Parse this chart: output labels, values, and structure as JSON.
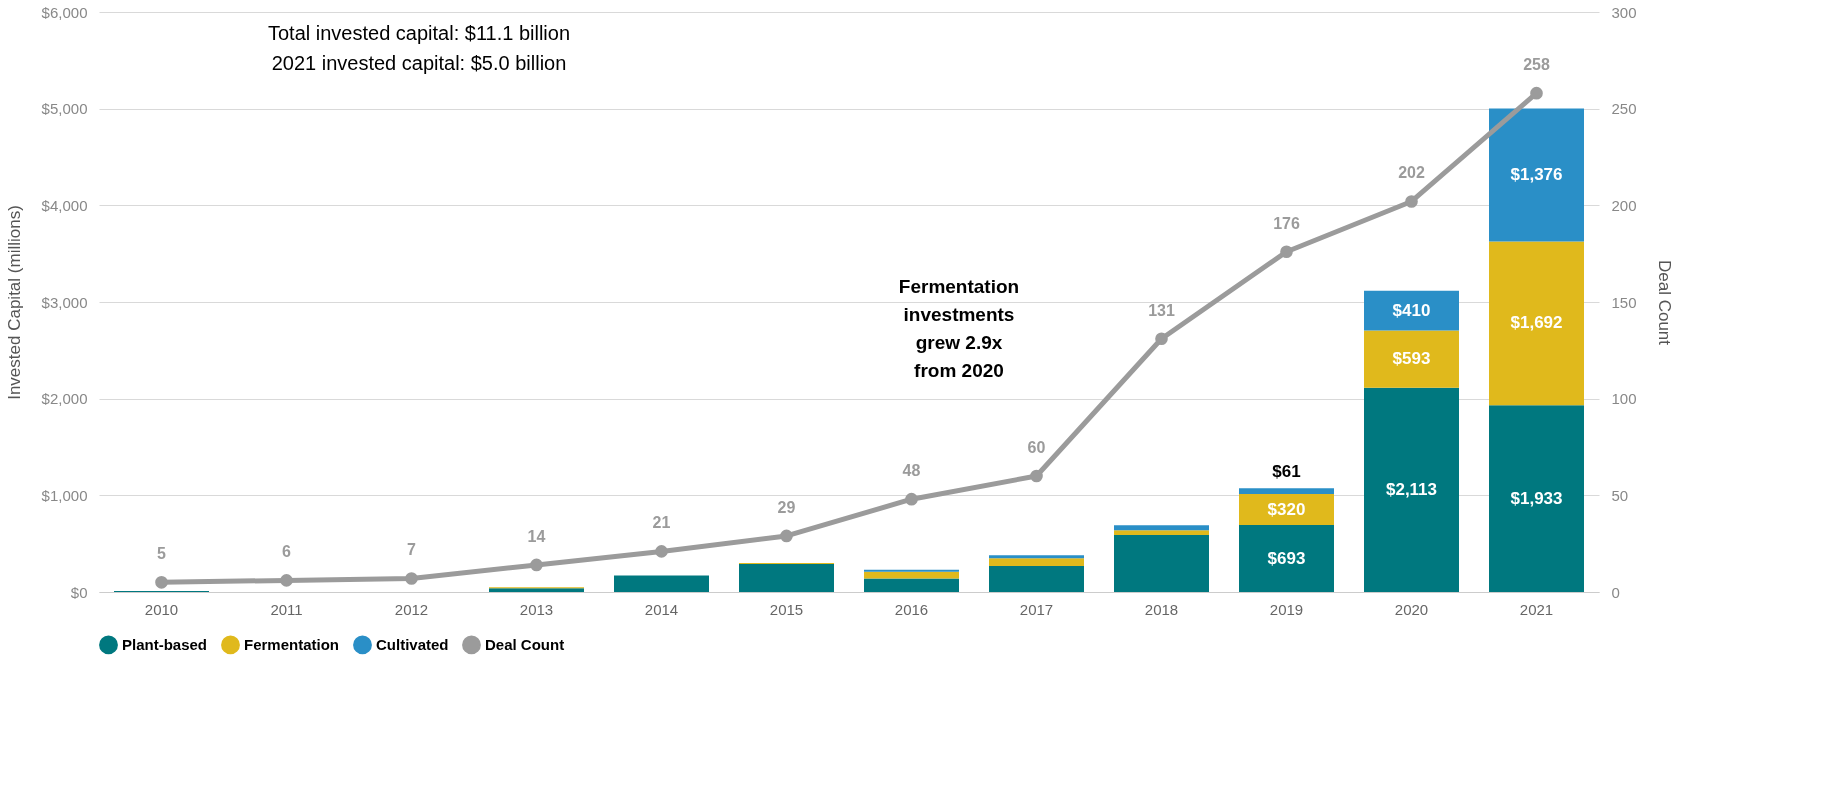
{
  "chart_data": {
    "type": "bar",
    "stacked": true,
    "categories": [
      "2010",
      "2011",
      "2012",
      "2013",
      "2014",
      "2015",
      "2016",
      "2017",
      "2018",
      "2019",
      "2020",
      "2021"
    ],
    "ylabel": "Invested Capital (millions)",
    "y2label": "Deal Count",
    "ylim": [
      0,
      6000
    ],
    "yticks": [
      {
        "value": 0,
        "label": "$0"
      },
      {
        "value": 1000,
        "label": "$1,000"
      },
      {
        "value": 2000,
        "label": "$2,000"
      },
      {
        "value": 3000,
        "label": "$3,000"
      },
      {
        "value": 4000,
        "label": "$4,000"
      },
      {
        "value": 5000,
        "label": "$5,000"
      },
      {
        "value": 6000,
        "label": "$6,000"
      }
    ],
    "y2lim": [
      0,
      300
    ],
    "y2ticks": [
      0,
      50,
      100,
      150,
      200,
      250,
      300
    ],
    "grid": "y",
    "legend": "bottom",
    "series": [
      {
        "name": "Plant-based",
        "color": "#00787f",
        "values": [
          10,
          0,
          0,
          40,
          170,
          290,
          140,
          270,
          590,
          693,
          2113,
          1933
        ],
        "value_labels": [
          null,
          null,
          null,
          null,
          null,
          null,
          null,
          null,
          null,
          "$693",
          "$2,113",
          "$1,933"
        ]
      },
      {
        "name": "Fermentation",
        "color": "#e0b91c",
        "values": [
          0,
          0,
          0,
          10,
          0,
          10,
          70,
          80,
          50,
          320,
          593,
          1692
        ],
        "value_labels": [
          null,
          null,
          null,
          null,
          null,
          null,
          null,
          null,
          null,
          "$320",
          "$593",
          "$1,692"
        ]
      },
      {
        "name": "Cultivated",
        "color": "#2a8fc7",
        "values": [
          0,
          0,
          0,
          0,
          0,
          0,
          20,
          30,
          50,
          61,
          410,
          1376
        ],
        "value_labels": [
          null,
          null,
          null,
          null,
          null,
          null,
          null,
          null,
          null,
          "$61",
          "$410",
          "$1,376"
        ]
      },
      {
        "name": "Deal Count",
        "type": "line",
        "axis": "y2",
        "marker": "circle",
        "color": "#9b9b9b",
        "values": [
          5,
          6,
          7,
          14,
          21,
          29,
          48,
          60,
          131,
          176,
          202,
          258
        ],
        "value_labels": [
          "5",
          "6",
          "7",
          "14",
          "21",
          "29",
          "48",
          "60",
          "131",
          "176",
          "202",
          "258"
        ]
      }
    ],
    "annotations": [
      "Total invested capital: $11.1 billion",
      "2021 invested capital: $5.0 billion",
      "Fermentation investments grew 2.9x from 2020"
    ]
  }
}
